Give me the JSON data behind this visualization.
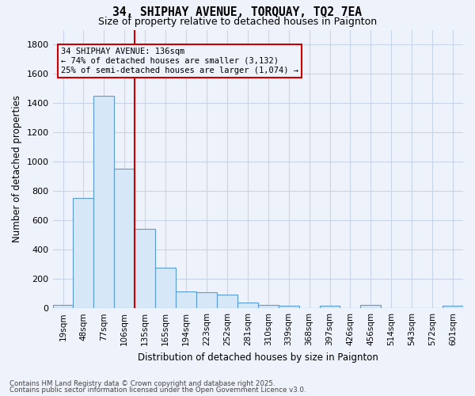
{
  "title1": "34, SHIPHAY AVENUE, TORQUAY, TQ2 7EA",
  "title2": "Size of property relative to detached houses in Paignton",
  "xlabel": "Distribution of detached houses by size in Paignton",
  "ylabel": "Number of detached properties",
  "bar_color": "#d6e8f7",
  "bar_edge_color": "#5b9bd5",
  "categories": [
    "19sqm",
    "48sqm",
    "77sqm",
    "106sqm",
    "135sqm",
    "165sqm",
    "194sqm",
    "223sqm",
    "252sqm",
    "281sqm",
    "310sqm",
    "339sqm",
    "368sqm",
    "397sqm",
    "426sqm",
    "456sqm",
    "514sqm",
    "543sqm",
    "572sqm",
    "601sqm"
  ],
  "values": [
    20,
    750,
    1450,
    950,
    540,
    275,
    115,
    110,
    95,
    40,
    25,
    15,
    0,
    15,
    0,
    20,
    0,
    0,
    0,
    15
  ],
  "ylim": [
    0,
    1900
  ],
  "yticks": [
    0,
    200,
    400,
    600,
    800,
    1000,
    1200,
    1400,
    1600,
    1800
  ],
  "vline_pos": 3.5,
  "vline_color": "#cc0000",
  "annotation_title": "34 SHIPHAY AVENUE: 136sqm",
  "annotation_line1": "← 74% of detached houses are smaller (3,132)",
  "annotation_line2": "25% of semi-detached houses are larger (1,074) →",
  "annotation_box_color": "#cc0000",
  "background_color": "#eef2fb",
  "grid_color": "#c8d4e8",
  "footer1": "Contains HM Land Registry data © Crown copyright and database right 2025.",
  "footer2": "Contains public sector information licensed under the Open Government Licence v3.0."
}
